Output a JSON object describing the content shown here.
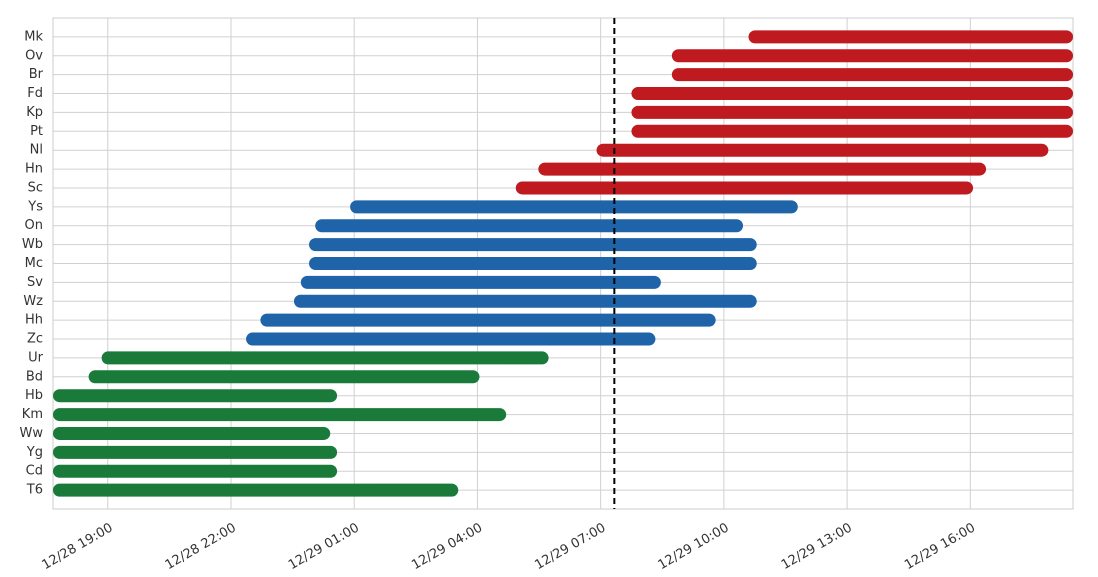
{
  "chart_data": {
    "type": "gantt",
    "xlim": [
      "12/28 17:40",
      "12/29 18:30"
    ],
    "xticks": [
      "12/28 19:00",
      "12/28 22:00",
      "12/29 01:00",
      "12/29 04:00",
      "12/29 07:00",
      "12/29 10:00",
      "12/29 13:00",
      "12/29 16:00"
    ],
    "grid": true,
    "vline": "12/29 07:20",
    "series": [
      {
        "color": "#be1a1f",
        "categories": [
          "Mk",
          "Ov",
          "Br",
          "Fd",
          "Kp",
          "Pt",
          "Nl",
          "Hn",
          "Sc"
        ],
        "start": [
          "12/29 10:36",
          "12/29 08:44",
          "12/29 08:44",
          "12/29 07:45",
          "12/29 07:45",
          "12/29 07:45",
          "12/29 06:54",
          "12/29 05:29",
          "12/29 04:56"
        ],
        "end": [
          "12/29 18:30",
          "12/29 18:30",
          "12/29 18:30",
          "12/29 18:30",
          "12/29 18:30",
          "12/29 18:30",
          "12/29 17:54",
          "12/29 16:23",
          "12/29 16:04"
        ]
      },
      {
        "color": "#1f63a8",
        "categories": [
          "Ys",
          "On",
          "Wb",
          "Mc",
          "Sv",
          "Wz",
          "Hh",
          "Zc"
        ],
        "start": [
          "12/29 00:54",
          "12/29 00:03",
          "12/28 23:54",
          "12/28 23:54",
          "12/28 23:42",
          "12/28 23:32",
          "12/28 22:43",
          "12/28 22:22"
        ],
        "end": [
          "12/29 11:48",
          "12/29 10:28",
          "12/29 10:48",
          "12/29 10:48",
          "12/29 08:28",
          "12/29 10:48",
          "12/29 09:48",
          "12/29 08:20"
        ]
      },
      {
        "color": "#1a7a3a",
        "categories": [
          "Ur",
          "Bd",
          "Hb",
          "Km",
          "Ww",
          "Yg",
          "Cd",
          "T6"
        ],
        "start": [
          "12/28 18:51",
          "12/28 18:32",
          "12/28 17:40",
          "12/28 17:40",
          "12/28 17:40",
          "12/28 17:40",
          "12/28 17:40",
          "12/28 17:40"
        ],
        "end": [
          "12/29 05:44",
          "12/29 04:03",
          "12/29 00:35",
          "12/29 04:42",
          "12/29 00:25",
          "12/29 00:35",
          "12/29 00:35",
          "12/29 03:32"
        ]
      }
    ]
  }
}
